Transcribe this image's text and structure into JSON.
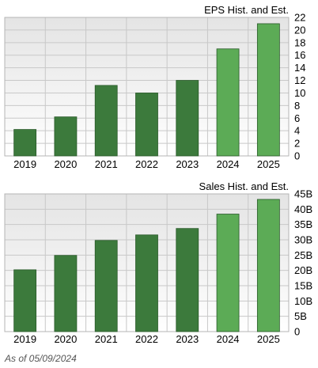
{
  "chart_data": [
    {
      "type": "bar",
      "title": "EPS Hist. and Est.",
      "categories": [
        "2019",
        "2020",
        "2021",
        "2022",
        "2023",
        "2024",
        "2025"
      ],
      "values": [
        4.2,
        6.2,
        11.2,
        10.0,
        12.0,
        17.0,
        21.0
      ],
      "estimate_flags": [
        false,
        false,
        false,
        false,
        false,
        true,
        true
      ],
      "ylim": [
        0,
        22
      ],
      "yticks": [
        0,
        2,
        4,
        6,
        8,
        10,
        12,
        14,
        16,
        18,
        20,
        22
      ],
      "ytick_labels": [
        "0",
        "2",
        "4",
        "6",
        "8",
        "10",
        "12",
        "14",
        "16",
        "18",
        "20",
        "22"
      ],
      "grid": true,
      "axis_side": "right"
    },
    {
      "type": "bar",
      "title": "Sales Hist. and Est.",
      "categories": [
        "2019",
        "2020",
        "2021",
        "2022",
        "2023",
        "2024",
        "2025"
      ],
      "values": [
        20.2,
        24.9,
        29.8,
        31.6,
        33.7,
        38.4,
        43.2
      ],
      "estimate_flags": [
        false,
        false,
        false,
        false,
        false,
        true,
        true
      ],
      "ylim": [
        0,
        45
      ],
      "yticks": [
        0,
        5,
        10,
        15,
        20,
        25,
        30,
        35,
        40,
        45
      ],
      "ytick_labels": [
        "0",
        "5B",
        "10B",
        "15B",
        "20B",
        "25B",
        "30B",
        "35B",
        "40B",
        "45B"
      ],
      "grid": true,
      "axis_side": "right"
    }
  ],
  "footnote": "As of 05/09/2024",
  "colors": {
    "historical_bar": "#3c7a3c",
    "estimate_bar": "#5cab56",
    "bar_edge": "#2a5a2a",
    "plot_bg_top": "#e4e4e4",
    "plot_bg_bottom": "#ffffff",
    "grid": "#c8c8c8",
    "frame": "#b4b4b4"
  }
}
